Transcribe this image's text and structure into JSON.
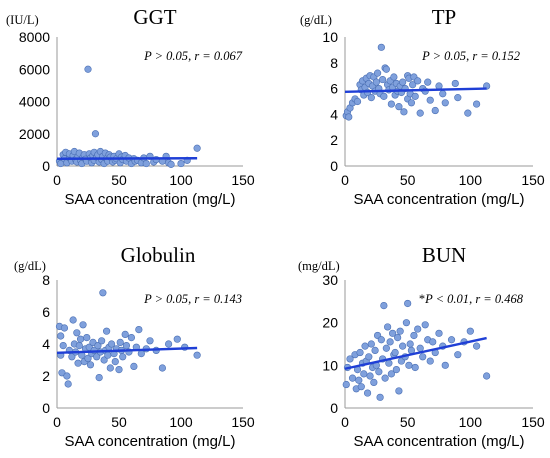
{
  "chart_data": [
    {
      "type": "scatter",
      "title": "GGT",
      "unit": "(IU/L)",
      "xlabel": "SAA concentration (mg/L)",
      "xlim": [
        0,
        150
      ],
      "xticks": [
        "0",
        "50",
        "100",
        "150"
      ],
      "ylim": [
        0,
        8000
      ],
      "yticks": [
        "0",
        "2000",
        "4000",
        "6000",
        "8000"
      ],
      "stat": {
        "prefix": "",
        "p": "P > 0.05",
        "sep": ", ",
        "r": "r = 0.067"
      },
      "trendline": [
        [
          0,
          450
        ],
        [
          113,
          480
        ]
      ],
      "points": [
        [
          2,
          300
        ],
        [
          3,
          150
        ],
        [
          5,
          700
        ],
        [
          6,
          450
        ],
        [
          7,
          850
        ],
        [
          8,
          200
        ],
        [
          10,
          500
        ],
        [
          10,
          750
        ],
        [
          12,
          300
        ],
        [
          13,
          650
        ],
        [
          14,
          900
        ],
        [
          15,
          400
        ],
        [
          16,
          250
        ],
        [
          17,
          600
        ],
        [
          18,
          800
        ],
        [
          19,
          350
        ],
        [
          20,
          150
        ],
        [
          21,
          550
        ],
        [
          22,
          700
        ],
        [
          23,
          420
        ],
        [
          24,
          300
        ],
        [
          25,
          6000
        ],
        [
          26,
          750
        ],
        [
          27,
          500
        ],
        [
          28,
          200
        ],
        [
          29,
          650
        ],
        [
          30,
          850
        ],
        [
          30,
          350
        ],
        [
          31,
          2000
        ],
        [
          32,
          550
        ],
        [
          33,
          700
        ],
        [
          34,
          250
        ],
        [
          35,
          900
        ],
        [
          36,
          400
        ],
        [
          37,
          600
        ],
        [
          38,
          150
        ],
        [
          39,
          800
        ],
        [
          40,
          450
        ],
        [
          41,
          300
        ],
        [
          42,
          700
        ],
        [
          43,
          550
        ],
        [
          45,
          250
        ],
        [
          46,
          600
        ],
        [
          47,
          350
        ],
        [
          48,
          450
        ],
        [
          50,
          750
        ],
        [
          51,
          200
        ],
        [
          52,
          550
        ],
        [
          53,
          400
        ],
        [
          55,
          650
        ],
        [
          56,
          300
        ],
        [
          58,
          500
        ],
        [
          60,
          150
        ],
        [
          62,
          450
        ],
        [
          63,
          300
        ],
        [
          65,
          350
        ],
        [
          68,
          200
        ],
        [
          70,
          500
        ],
        [
          72,
          150
        ],
        [
          75,
          600
        ],
        [
          78,
          250
        ],
        [
          80,
          400
        ],
        [
          85,
          300
        ],
        [
          88,
          600
        ],
        [
          90,
          200
        ],
        [
          92,
          100
        ],
        [
          100,
          150
        ],
        [
          105,
          350
        ],
        [
          113,
          1100
        ]
      ]
    },
    {
      "type": "scatter",
      "title": "TP",
      "unit": "(g/dL)",
      "xlabel": "SAA concentration (mg/L)",
      "xlim": [
        0,
        150
      ],
      "xticks": [
        "0",
        "50",
        "100",
        "150"
      ],
      "ylim": [
        0,
        10
      ],
      "yticks": [
        "0",
        "2",
        "4",
        "6",
        "8",
        "10"
      ],
      "stat": {
        "prefix": "",
        "p": "P > 0.05",
        "sep": ", ",
        "r": "r = 0.152"
      },
      "trendline": [
        [
          0,
          5.75
        ],
        [
          113,
          6.0
        ]
      ],
      "points": [
        [
          1,
          3.9
        ],
        [
          2,
          4.2
        ],
        [
          3,
          3.8
        ],
        [
          4,
          4.5
        ],
        [
          6,
          4.9
        ],
        [
          8,
          5.2
        ],
        [
          10,
          5.0
        ],
        [
          12,
          6.3
        ],
        [
          13,
          5.9
        ],
        [
          14,
          6.6
        ],
        [
          15,
          5.5
        ],
        [
          16,
          6.1
        ],
        [
          17,
          6.8
        ],
        [
          18,
          5.7
        ],
        [
          19,
          6.4
        ],
        [
          20,
          7.0
        ],
        [
          21,
          5.3
        ],
        [
          22,
          6.2
        ],
        [
          23,
          6.9
        ],
        [
          24,
          5.8
        ],
        [
          25,
          6.5
        ],
        [
          26,
          7.2
        ],
        [
          27,
          6.0
        ],
        [
          28,
          5.6
        ],
        [
          29,
          9.2
        ],
        [
          30,
          6.7
        ],
        [
          31,
          5.4
        ],
        [
          32,
          7.6
        ],
        [
          33,
          7.5
        ],
        [
          34,
          6.3
        ],
        [
          35,
          5.9
        ],
        [
          36,
          6.6
        ],
        [
          37,
          4.8
        ],
        [
          38,
          6.1
        ],
        [
          39,
          6.9
        ],
        [
          40,
          5.5
        ],
        [
          41,
          6.4
        ],
        [
          42,
          5.8
        ],
        [
          43,
          4.6
        ],
        [
          44,
          6.2
        ],
        [
          45,
          5.7
        ],
        [
          46,
          6.5
        ],
        [
          47,
          4.2
        ],
        [
          48,
          6.0
        ],
        [
          50,
          7.0
        ],
        [
          50,
          5.2
        ],
        [
          51,
          6.8
        ],
        [
          52,
          5.6
        ],
        [
          53,
          4.9
        ],
        [
          54,
          6.3
        ],
        [
          55,
          6.9
        ],
        [
          56,
          5.4
        ],
        [
          58,
          6.6
        ],
        [
          60,
          4.1
        ],
        [
          62,
          6.0
        ],
        [
          64,
          5.8
        ],
        [
          66,
          6.5
        ],
        [
          68,
          5.1
        ],
        [
          72,
          4.3
        ],
        [
          75,
          6.2
        ],
        [
          78,
          5.6
        ],
        [
          80,
          4.9
        ],
        [
          88,
          6.4
        ],
        [
          90,
          5.3
        ],
        [
          98,
          4.1
        ],
        [
          105,
          4.8
        ],
        [
          113,
          6.2
        ]
      ]
    },
    {
      "type": "scatter",
      "title": "Globulin",
      "unit": "(g/dL)",
      "xlabel": "SAA concentration (mg/L)",
      "xlim": [
        0,
        150
      ],
      "xticks": [
        "0",
        "50",
        "100",
        "150"
      ],
      "ylim": [
        0,
        8
      ],
      "yticks": [
        "0",
        "2",
        "4",
        "6",
        "8"
      ],
      "stat": {
        "prefix": "",
        "p": "P > 0.05",
        "sep": ", ",
        "r": "r = 0.143"
      },
      "trendline": [
        [
          0,
          3.45
        ],
        [
          113,
          3.75
        ]
      ],
      "points": [
        [
          2,
          5.1
        ],
        [
          3,
          4.5
        ],
        [
          3,
          3.3
        ],
        [
          4,
          2.2
        ],
        [
          5,
          3.9
        ],
        [
          6,
          5.0
        ],
        [
          8,
          2.0
        ],
        [
          9,
          1.5
        ],
        [
          10,
          3.6
        ],
        [
          12,
          3.2
        ],
        [
          13,
          5.5
        ],
        [
          14,
          4.0
        ],
        [
          15,
          3.5
        ],
        [
          16,
          4.7
        ],
        [
          17,
          2.8
        ],
        [
          18,
          3.9
        ],
        [
          19,
          4.3
        ],
        [
          20,
          3.3
        ],
        [
          21,
          5.2
        ],
        [
          22,
          2.9
        ],
        [
          23,
          3.7
        ],
        [
          24,
          4.4
        ],
        [
          25,
          3.1
        ],
        [
          26,
          3.8
        ],
        [
          27,
          2.7
        ],
        [
          28,
          3.4
        ],
        [
          29,
          4.1
        ],
        [
          30,
          3.6
        ],
        [
          32,
          3.2
        ],
        [
          33,
          3.9
        ],
        [
          34,
          1.9
        ],
        [
          35,
          3.5
        ],
        [
          36,
          4.2
        ],
        [
          37,
          7.2
        ],
        [
          38,
          3.0
        ],
        [
          39,
          3.6
        ],
        [
          40,
          4.8
        ],
        [
          41,
          3.3
        ],
        [
          42,
          3.8
        ],
        [
          43,
          2.5
        ],
        [
          44,
          4.0
        ],
        [
          46,
          3.4
        ],
        [
          47,
          2.9
        ],
        [
          48,
          3.7
        ],
        [
          50,
          2.4
        ],
        [
          51,
          4.1
        ],
        [
          52,
          3.6
        ],
        [
          53,
          3.2
        ],
        [
          55,
          4.6
        ],
        [
          56,
          3.9
        ],
        [
          58,
          3.5
        ],
        [
          60,
          4.4
        ],
        [
          62,
          2.6
        ],
        [
          64,
          3.8
        ],
        [
          66,
          4.9
        ],
        [
          68,
          3.4
        ],
        [
          72,
          3.7
        ],
        [
          75,
          4.2
        ],
        [
          80,
          3.6
        ],
        [
          85,
          2.5
        ],
        [
          90,
          4.0
        ],
        [
          97,
          4.3
        ],
        [
          103,
          3.8
        ],
        [
          113,
          3.3
        ]
      ]
    },
    {
      "type": "scatter",
      "title": "BUN",
      "unit": "(mg/dL)",
      "xlabel": "SAA concentration (mg/L)",
      "xlim": [
        0,
        150
      ],
      "xticks": [
        "0",
        "50",
        "100",
        "150"
      ],
      "ylim": [
        0,
        30
      ],
      "yticks": [
        "0",
        "10",
        "20",
        "30"
      ],
      "stat": {
        "prefix": "*",
        "p": "P < 0.01",
        "sep": ", ",
        "r": "r = 0.468"
      },
      "trendline": [
        [
          0,
          9.2
        ],
        [
          113,
          16.4
        ]
      ],
      "points": [
        [
          1,
          5.5
        ],
        [
          2,
          9.5
        ],
        [
          4,
          11.5
        ],
        [
          6,
          7.0
        ],
        [
          8,
          12.5
        ],
        [
          9,
          4.5
        ],
        [
          10,
          9.0
        ],
        [
          11,
          6.5
        ],
        [
          12,
          13.0
        ],
        [
          13,
          5.0
        ],
        [
          14,
          10.5
        ],
        [
          15,
          8.0
        ],
        [
          16,
          14.5
        ],
        [
          17,
          11.0
        ],
        [
          18,
          3.5
        ],
        [
          19,
          12.0
        ],
        [
          20,
          7.5
        ],
        [
          21,
          15.0
        ],
        [
          22,
          9.5
        ],
        [
          23,
          6.0
        ],
        [
          24,
          13.5
        ],
        [
          25,
          10.0
        ],
        [
          26,
          17.0
        ],
        [
          27,
          8.5
        ],
        [
          28,
          2.5
        ],
        [
          29,
          16.0
        ],
        [
          30,
          11.5
        ],
        [
          31,
          24.0
        ],
        [
          32,
          7.0
        ],
        [
          33,
          14.0
        ],
        [
          34,
          19.0
        ],
        [
          35,
          10.5
        ],
        [
          36,
          15.5
        ],
        [
          37,
          8.0
        ],
        [
          38,
          17.5
        ],
        [
          39,
          12.5
        ],
        [
          40,
          13.0
        ],
        [
          41,
          9.0
        ],
        [
          42,
          16.5
        ],
        [
          43,
          4.0
        ],
        [
          44,
          18.0
        ],
        [
          45,
          11.0
        ],
        [
          46,
          14.5
        ],
        [
          48,
          12.0
        ],
        [
          49,
          20.0
        ],
        [
          50,
          24.5
        ],
        [
          51,
          10.0
        ],
        [
          52,
          15.0
        ],
        [
          53,
          13.5
        ],
        [
          55,
          17.0
        ],
        [
          56,
          9.5
        ],
        [
          58,
          18.5
        ],
        [
          60,
          14.0
        ],
        [
          62,
          12.0
        ],
        [
          64,
          19.5
        ],
        [
          66,
          16.0
        ],
        [
          68,
          11.0
        ],
        [
          70,
          15.5
        ],
        [
          72,
          13.0
        ],
        [
          75,
          17.5
        ],
        [
          78,
          14.5
        ],
        [
          80,
          10.0
        ],
        [
          85,
          16.0
        ],
        [
          90,
          12.5
        ],
        [
          95,
          15.5
        ],
        [
          100,
          18.0
        ],
        [
          105,
          14.5
        ],
        [
          113,
          7.5
        ]
      ]
    }
  ]
}
